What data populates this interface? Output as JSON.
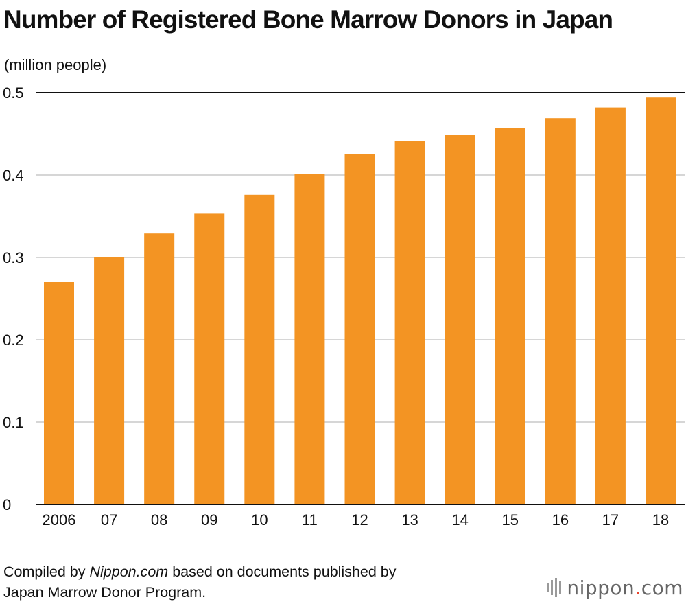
{
  "header": {
    "title": "Number of Registered Bone Marrow Donors in Japan",
    "unit_label": "(million people)"
  },
  "footer": {
    "source_prefix": "Compiled by ",
    "source_site": "Nippon.com",
    "source_suffix": " based on documents published by",
    "source_line2": "Japan Marrow Donor Program.",
    "logo_brand": "nippon",
    "logo_dot": ".",
    "logo_domain": "com"
  },
  "colors": {
    "bar": "#F39423",
    "grid": "#c8c8c8",
    "axis": "#111111"
  },
  "chart_data": {
    "type": "bar",
    "title": "Number of Registered Bone Marrow Donors in Japan",
    "ylabel": "(million people)",
    "xlabel": "",
    "categories": [
      "2006",
      "07",
      "08",
      "09",
      "10",
      "11",
      "12",
      "13",
      "14",
      "15",
      "16",
      "17",
      "18"
    ],
    "values": [
      0.27,
      0.3,
      0.329,
      0.353,
      0.376,
      0.401,
      0.425,
      0.441,
      0.449,
      0.457,
      0.469,
      0.482,
      0.494
    ],
    "ylim": [
      0,
      0.5
    ],
    "yticks": [
      0,
      0.1,
      0.2,
      0.3,
      0.4,
      0.5
    ],
    "ytick_labels": [
      "0",
      "0.1",
      "0.2",
      "0.3",
      "0.4",
      "0.5"
    ],
    "grid": true,
    "legend": "none"
  }
}
